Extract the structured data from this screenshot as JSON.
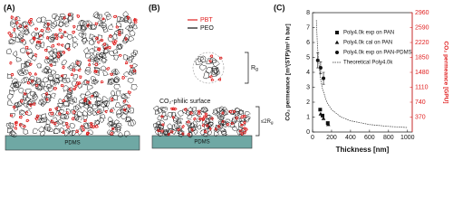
{
  "panels": {
    "a": {
      "label": "(A)",
      "substrate": "PDMS"
    },
    "b": {
      "label": "(B)",
      "legend": [
        {
          "name": "PBT",
          "color": "#e02020"
        },
        {
          "name": "PEO",
          "color": "#111111"
        }
      ],
      "radius": {
        "main": "R",
        "sub": "g"
      },
      "surface": "CO₂-philic surface",
      "substrate": "PDMS",
      "thickness": {
        "main": "≤2R",
        "sub": "g"
      }
    },
    "c": {
      "label": "(C)"
    }
  },
  "chart_data": {
    "type": "scatter",
    "xlabel": "Thickness [nm]",
    "ylabel": "CO₂ permeance [m³(STP)/m² h bar]",
    "y2label": "CO₂ permeance [GPU]",
    "y2color": "#e02020",
    "xlim": [
      0,
      1050
    ],
    "xticks": [
      0,
      200,
      400,
      600,
      800,
      1000
    ],
    "ylim": [
      0,
      8
    ],
    "yticks": [
      0,
      1,
      2,
      3,
      4,
      5,
      6,
      7,
      8
    ],
    "y2lim": [
      0,
      2960
    ],
    "y2ticks": [
      370,
      740,
      1110,
      1480,
      1850,
      2220,
      2590,
      2960
    ],
    "legend": "upper right",
    "series": [
      {
        "name": "Poly4.0k exp on PAN",
        "marker": "square",
        "color": "#111111",
        "x": [
          80,
          105,
          160
        ],
        "values": [
          1.5,
          1.1,
          0.6
        ]
      },
      {
        "name": "Poly4.0k cal on PAN",
        "marker": "triangle",
        "color": "#111111",
        "x": [
          85,
          115,
          165
        ],
        "values": [
          1.2,
          0.9,
          0.5
        ]
      },
      {
        "name": "Poly4.0k exp on PAN-PDMS",
        "marker": "circle",
        "color": "#111111",
        "x": [
          55,
          85,
          115
        ],
        "values": [
          4.8,
          4.3,
          3.6
        ],
        "errors": [
          0.5,
          0.4,
          0.4
        ]
      },
      {
        "name": "Theoretical Poly4.0k",
        "marker": "dashed-line",
        "color": "#333333",
        "x": [
          40,
          50,
          60,
          80,
          100,
          150,
          200,
          300,
          400,
          600,
          800,
          1000
        ],
        "values": [
          7.5,
          6,
          5,
          3.75,
          3,
          2,
          1.5,
          1,
          0.75,
          0.5,
          0.375,
          0.3
        ]
      }
    ]
  }
}
